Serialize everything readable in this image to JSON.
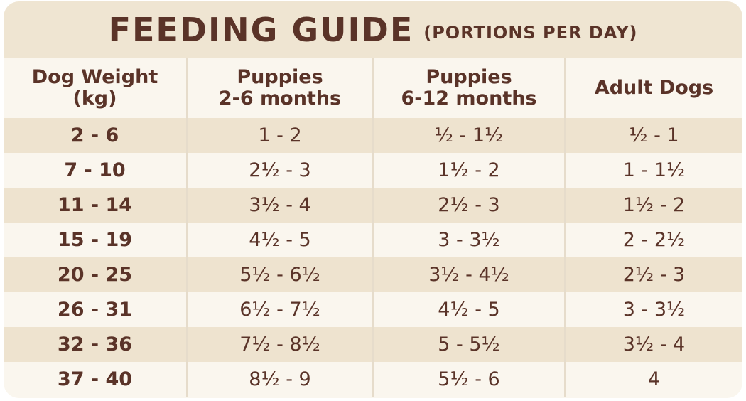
{
  "header": {
    "title": "FEEDING GUIDE",
    "subtitle": "(PORTIONS PER DAY)"
  },
  "table": {
    "columns": [
      [
        "Dog Weight",
        "(kg)"
      ],
      [
        "Puppies",
        "2-6 months"
      ],
      [
        "Puppies",
        "6-12 months"
      ],
      [
        "Adult Dogs"
      ]
    ],
    "rows": [
      [
        "2 - 6",
        "1 - 2",
        "½ - 1½",
        "½ - 1"
      ],
      [
        "7 - 10",
        "2½ - 3",
        "1½ - 2",
        "1 - 1½"
      ],
      [
        "11 - 14",
        "3½ - 4",
        "2½ - 3",
        "1½ - 2"
      ],
      [
        "15 - 19",
        "4½ - 5",
        "3 - 3½",
        "2 - 2½"
      ],
      [
        "20 - 25",
        "5½ - 6½",
        "3½ - 4½",
        "2½ - 3"
      ],
      [
        "26 - 31",
        "6½ - 7½",
        "4½ - 5",
        "3 - 3½"
      ],
      [
        "32 - 36",
        "7½ - 8½",
        "5 - 5½",
        "3½ - 4"
      ],
      [
        "37 - 40",
        "8½ - 9",
        "5½ - 6",
        "4"
      ]
    ]
  }
}
